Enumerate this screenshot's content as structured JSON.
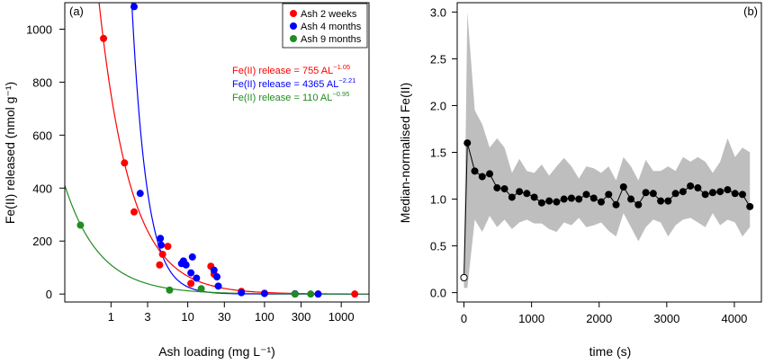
{
  "chart_data": [
    {
      "panel_label": "(a)",
      "type": "scatter",
      "xlabel": "Ash loading (mg L⁻¹)",
      "ylabel": "Fe(II) released (nmol g⁻¹)",
      "xscale": "log",
      "xticks": [
        1,
        3,
        10,
        30,
        100,
        300,
        1000
      ],
      "yticks": [
        0,
        200,
        400,
        600,
        800,
        1000
      ],
      "xlim": [
        0.25,
        2300
      ],
      "ylim": [
        -30,
        1100
      ],
      "grid": false,
      "legend_position": "top-right",
      "series": [
        {
          "name": "Ash 2 weeks",
          "color": "#ff0000",
          "fit": {
            "label": "Fe(II) release = 755 AL",
            "exponent": "−1.05",
            "a": 755,
            "b": -1.05
          },
          "points": [
            [
              0.8,
              965
            ],
            [
              1.5,
              495
            ],
            [
              2,
              310
            ],
            [
              4.3,
              110
            ],
            [
              4.7,
              150
            ],
            [
              5.5,
              180
            ],
            [
              11,
              40
            ],
            [
              20,
              105
            ],
            [
              22,
              75
            ],
            [
              50,
              10
            ],
            [
              100,
              3
            ],
            [
              250,
              0
            ],
            [
              500,
              0
            ],
            [
              1500,
              0
            ]
          ]
        },
        {
          "name": "Ash 4 months",
          "color": "#0000ff",
          "fit": {
            "label": "Fe(II) release = 4365 AL",
            "exponent": "−2.21",
            "a": 4365,
            "b": -2.21
          },
          "points": [
            [
              2,
              1085
            ],
            [
              2.4,
              380
            ],
            [
              4.4,
              210
            ],
            [
              4.5,
              185
            ],
            [
              8.3,
              115
            ],
            [
              8.8,
              125
            ],
            [
              9.5,
              110
            ],
            [
              11,
              80
            ],
            [
              11.5,
              140
            ],
            [
              13,
              60
            ],
            [
              22,
              90
            ],
            [
              24,
              65
            ],
            [
              25,
              30
            ],
            [
              50,
              5
            ],
            [
              100,
              2
            ],
            [
              250,
              1
            ],
            [
              500,
              0
            ]
          ]
        },
        {
          "name": "Ash 9 months",
          "color": "#228b22",
          "fit": {
            "label": "Fe(II) release = 110 AL",
            "exponent": "−0.95",
            "a": 110,
            "b": -0.95
          },
          "points": [
            [
              0.4,
              260
            ],
            [
              5.8,
              15
            ],
            [
              15,
              20
            ],
            [
              250,
              0
            ],
            [
              400,
              0
            ]
          ]
        }
      ]
    },
    {
      "panel_label": "(b)",
      "type": "line",
      "xlabel": "time (s)",
      "ylabel": "Median-normalised Fe(II)",
      "xticks": [
        0,
        1000,
        2000,
        3000,
        4000
      ],
      "yticks": [
        0.0,
        0.5,
        1.0,
        1.5,
        2.0,
        2.5,
        3.0
      ],
      "xlim": [
        -100,
        4400
      ],
      "ylim": [
        -0.1,
        3.1
      ],
      "grid": false,
      "median_series": {
        "x": [
          0,
          50,
          160,
          270,
          380,
          490,
          600,
          710,
          820,
          930,
          1040,
          1150,
          1260,
          1370,
          1480,
          1590,
          1700,
          1810,
          1920,
          2030,
          2140,
          2250,
          2360,
          2470,
          2580,
          2690,
          2800,
          2910,
          3020,
          3130,
          3240,
          3350,
          3460,
          3570,
          3680,
          3790,
          3900,
          4010,
          4120,
          4230
        ],
        "y": [
          0.16,
          1.6,
          1.3,
          1.24,
          1.27,
          1.12,
          1.11,
          1.02,
          1.08,
          1.06,
          1.02,
          0.96,
          0.98,
          0.97,
          1.0,
          1.01,
          1.0,
          1.05,
          1.01,
          0.97,
          1.05,
          0.94,
          1.13,
          1.0,
          0.94,
          1.07,
          1.06,
          0.98,
          0.98,
          1.06,
          1.08,
          1.14,
          1.12,
          1.05,
          1.07,
          1.08,
          1.1,
          1.06,
          1.05,
          0.92
        ],
        "first_point_style": "open circle"
      },
      "range_band": {
        "upper": [
          0.3,
          3.0,
          1.95,
          1.8,
          1.55,
          1.65,
          1.55,
          1.28,
          1.43,
          1.3,
          1.28,
          1.37,
          1.25,
          1.35,
          1.44,
          1.35,
          1.22,
          1.35,
          1.33,
          1.28,
          1.35,
          1.2,
          1.45,
          1.35,
          1.2,
          1.42,
          1.3,
          1.3,
          1.35,
          1.3,
          1.45,
          1.4,
          1.45,
          1.4,
          1.28,
          1.4,
          1.65,
          1.45,
          1.55,
          1.5
        ],
        "lower": [
          0.05,
          0.05,
          0.78,
          0.65,
          0.82,
          0.7,
          0.78,
          0.68,
          0.75,
          0.78,
          0.74,
          0.74,
          0.68,
          0.65,
          0.75,
          0.72,
          0.8,
          0.7,
          0.72,
          0.75,
          0.66,
          0.6,
          0.85,
          0.7,
          0.55,
          0.7,
          0.78,
          0.75,
          0.6,
          0.72,
          0.78,
          0.8,
          0.75,
          0.7,
          0.85,
          0.72,
          0.78,
          0.75,
          0.6,
          0.7
        ],
        "color": "#bebebe"
      }
    }
  ]
}
